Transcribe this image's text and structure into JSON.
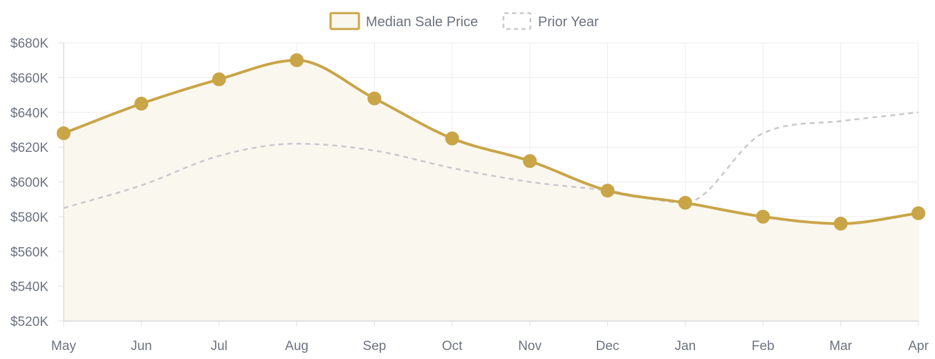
{
  "chart_data": {
    "type": "line",
    "title": "",
    "xlabel": "",
    "ylabel": "",
    "categories": [
      "May",
      "Jun",
      "Jul",
      "Aug",
      "Sep",
      "Oct",
      "Nov",
      "Dec",
      "Jan",
      "Feb",
      "Mar",
      "Apr"
    ],
    "ylim": [
      520000,
      680000
    ],
    "yticks": [
      520000,
      540000,
      560000,
      580000,
      600000,
      620000,
      640000,
      660000,
      680000
    ],
    "ytick_labels": [
      "$520K",
      "$540K",
      "$560K",
      "$580K",
      "$600K",
      "$620K",
      "$640K",
      "$660K",
      "$680K"
    ],
    "grid": true,
    "legend_position": "top-center",
    "series": [
      {
        "name": "Median Sale Price",
        "values": [
          628000,
          645000,
          659000,
          670000,
          648000,
          625000,
          612000,
          595000,
          588000,
          580000,
          576000,
          582000
        ],
        "color": "#c9a548",
        "fill": "#faf7ef",
        "style": "solid",
        "markers": true
      },
      {
        "name": "Prior Year",
        "values": [
          585000,
          598000,
          615000,
          622000,
          618000,
          608000,
          600000,
          595000,
          588000,
          628000,
          635000,
          640000
        ],
        "color": "#c8c8cc",
        "style": "dashed",
        "markers": false
      }
    ]
  }
}
